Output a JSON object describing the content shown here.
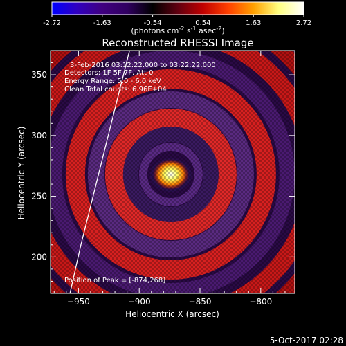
{
  "colorbar": {
    "ticks": [
      "-2.72",
      "-1.63",
      "-0.54",
      "0.54",
      "1.63",
      "2.72"
    ],
    "units_prefix": "(photons cm",
    "units_exp1": "-2",
    "units_mid": " s",
    "units_exp2": "-1",
    "units_mid2": " asec",
    "units_exp3": "-2",
    "units_suffix": ")",
    "colors": [
      "#0000ff",
      "#3000c0",
      "#400080",
      "#300060",
      "#000000",
      "#600010",
      "#c00000",
      "#ff4000",
      "#ffa000",
      "#ffff80",
      "#ffffff"
    ]
  },
  "annotations": {
    "time_range": "3-Feb-2016 03:12:22.000 to 03:22:22.000",
    "detectors": "Detectors: 1F 5F 7F, Att 0",
    "energy": "Energy Range: 5.0 - 6.0 keV",
    "clean": "Clean     Total counts: 6.96E+04",
    "peak": "Position of Peak = [-874,268]"
  },
  "footer": {
    "date": "5-Oct-2017 02:28"
  },
  "chart_data": {
    "type": "heatmap",
    "title": "Reconstructed RHESSI Image",
    "xlabel": "Heliocentric X (arcsec)",
    "ylabel": "Heliocentric Y (arcsec)",
    "xlim": [
      -973,
      -772
    ],
    "ylim": [
      170,
      370
    ],
    "xticks": [
      -950,
      -900,
      -850,
      -800
    ],
    "yticks": [
      200,
      250,
      300,
      350
    ],
    "value_range": [
      -2.72,
      2.72
    ],
    "peak": {
      "x": -874,
      "y": 268
    },
    "limb_curve": [
      [
        -957,
        170
      ],
      [
        -948,
        210
      ],
      [
        -938,
        250
      ],
      [
        -928,
        290
      ],
      [
        -918,
        330
      ],
      [
        -908,
        370
      ]
    ]
  }
}
